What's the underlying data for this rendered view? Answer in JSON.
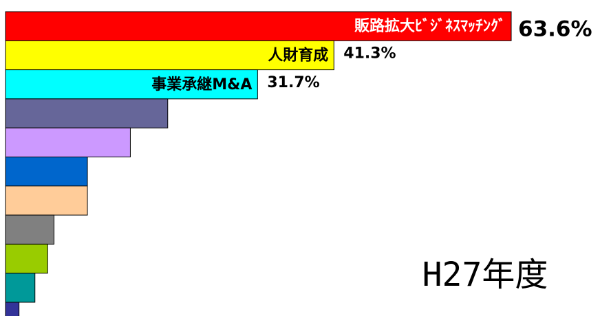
{
  "chart_data": {
    "type": "bar",
    "orientation": "horizontal",
    "annotation": "H27年度",
    "categories": [
      "販路拡大ﾋﾞｼﾞﾈｽﾏｯﾁﾝｸﾞ",
      "人財育成",
      "事業承継M&A",
      null,
      null,
      null,
      null,
      null,
      null,
      null,
      null
    ],
    "values": [
      63.6,
      41.3,
      31.7,
      20.4,
      15.7,
      10.3,
      10.3,
      6.1,
      5.3,
      3.7,
      1.7
    ],
    "value_labels": [
      "63.6%",
      "41.3%",
      "31.7%",
      null,
      null,
      null,
      null,
      null,
      null,
      null,
      null
    ],
    "colors": [
      "#ff0000",
      "#ffff00",
      "#00ffff",
      "#666699",
      "#cc99ff",
      "#0066cc",
      "#ffcc99",
      "#808080",
      "#99cc00",
      "#009999",
      "#333399"
    ]
  }
}
